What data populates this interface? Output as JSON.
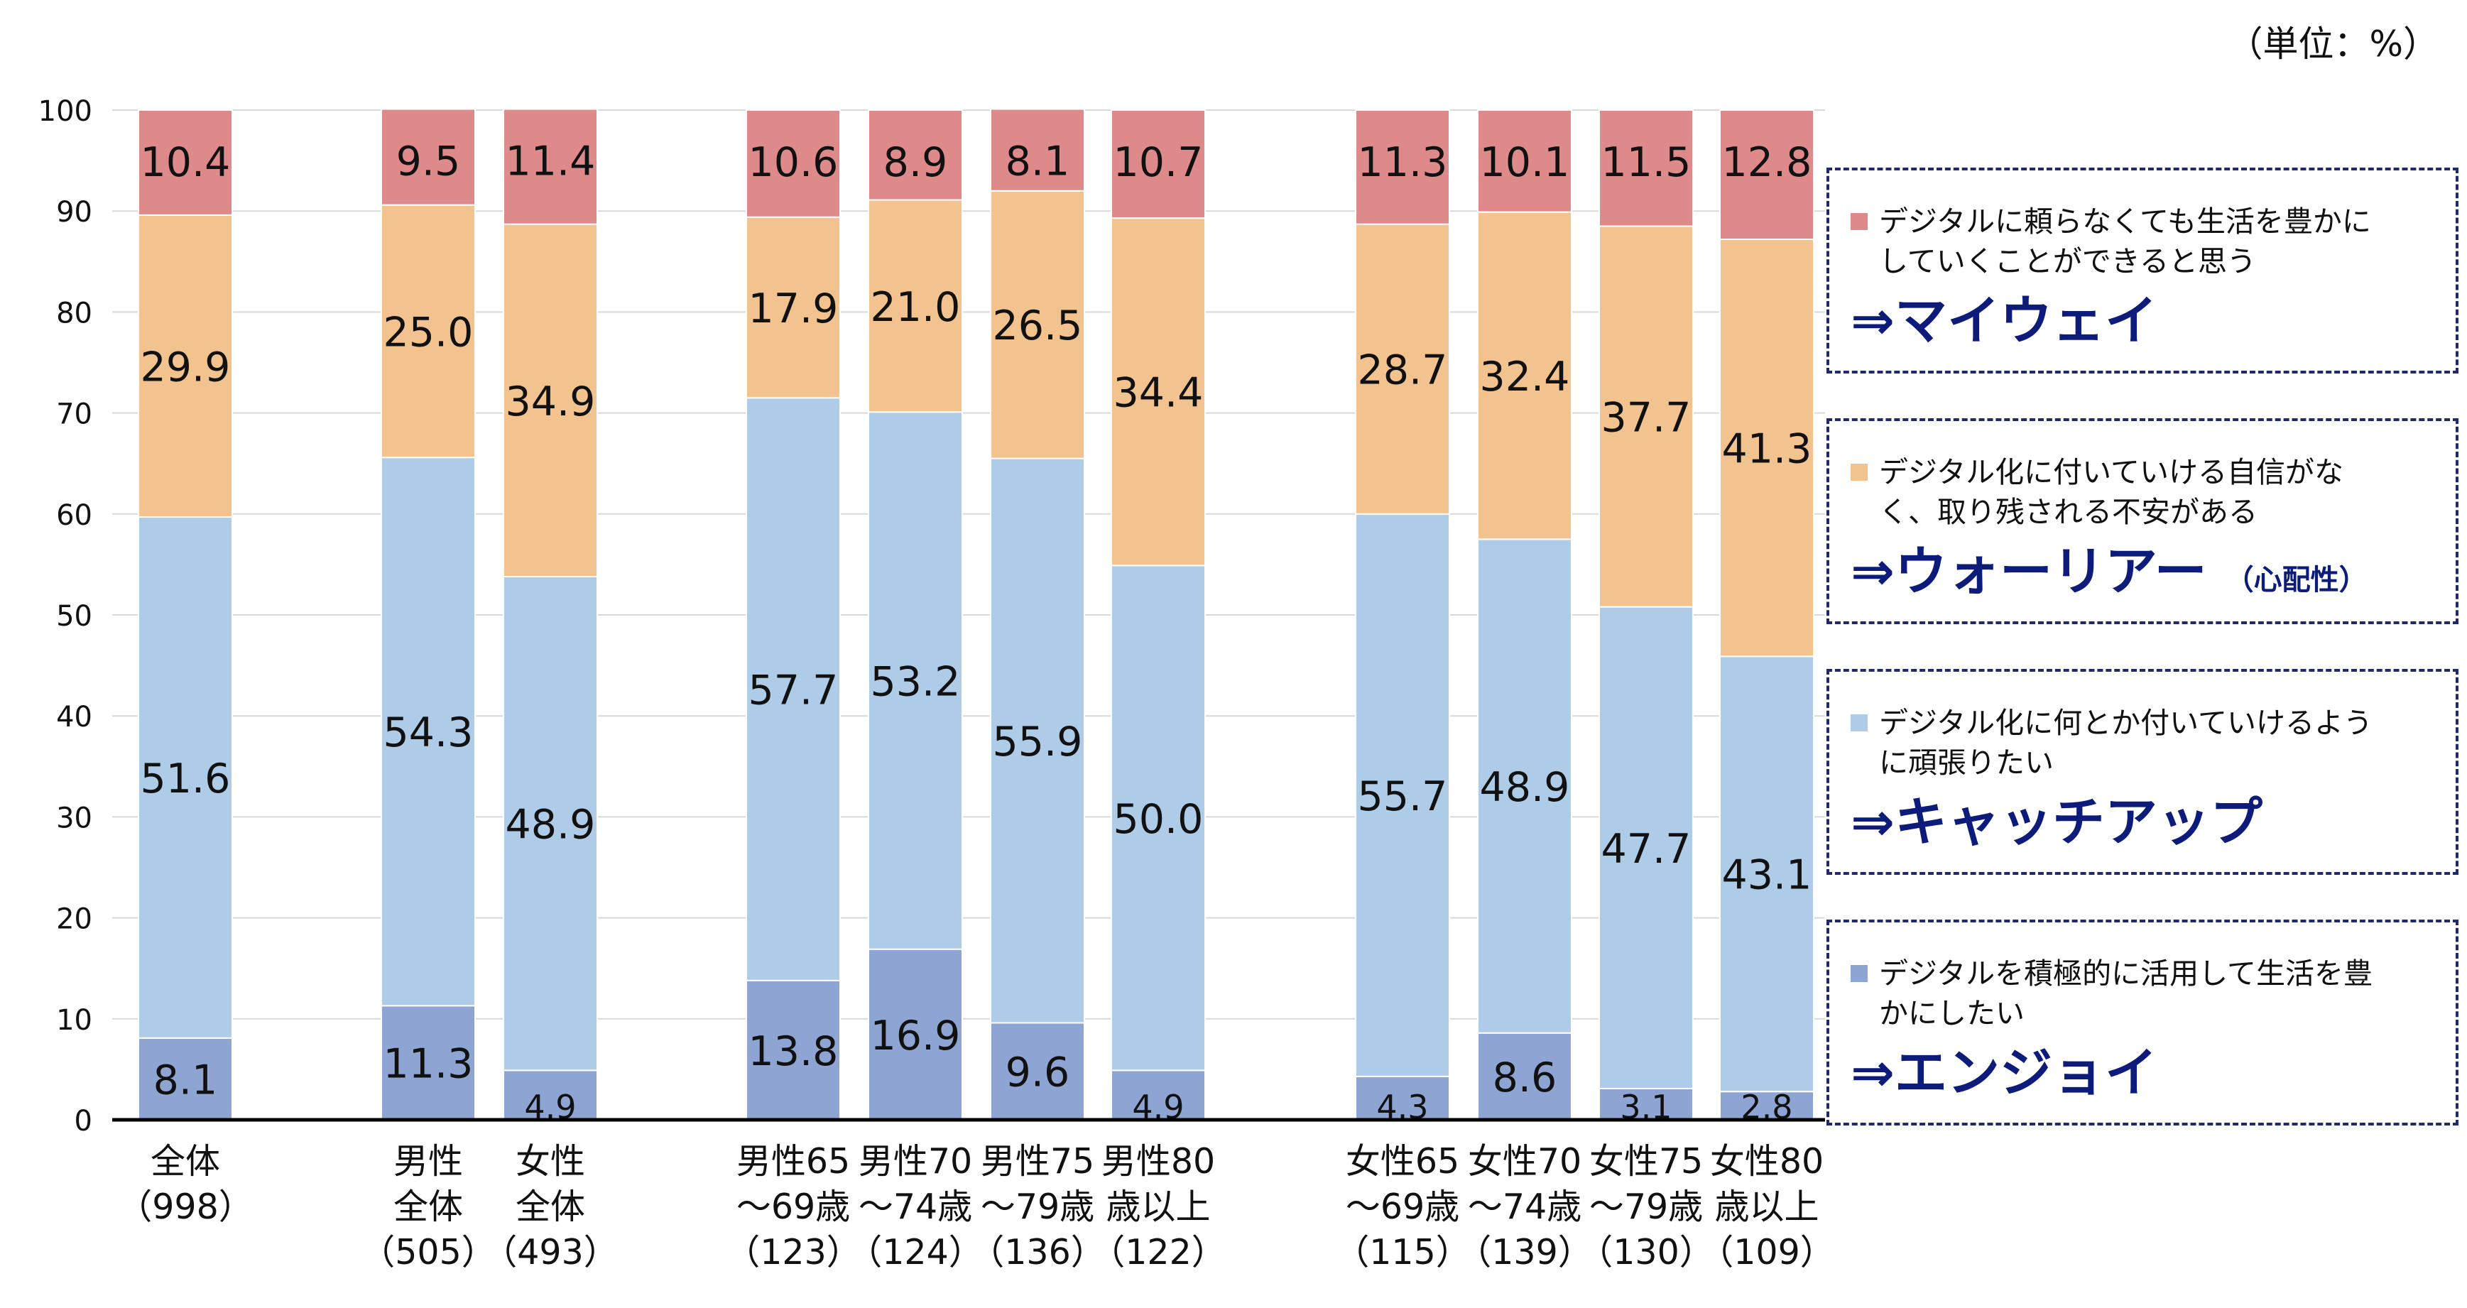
{
  "unit_note": "（単位：%）",
  "chart_data": {
    "type": "bar",
    "stacked": true,
    "ylim": [
      0,
      100
    ],
    "yticks": [
      "0",
      "10",
      "20",
      "30",
      "40",
      "50",
      "60",
      "70",
      "80",
      "90",
      "100"
    ],
    "grid": true,
    "categories": [
      {
        "lines": [
          "全体",
          "（998）"
        ]
      },
      {
        "lines": [
          "男性",
          "全体",
          "（505）"
        ]
      },
      {
        "lines": [
          "女性",
          "全体",
          "（493）"
        ]
      },
      {
        "lines": [
          "男性65",
          "～69歳",
          "（123）"
        ]
      },
      {
        "lines": [
          "男性70",
          "～74歳",
          "（124）"
        ]
      },
      {
        "lines": [
          "男性75",
          "～79歳",
          "（136）"
        ]
      },
      {
        "lines": [
          "男性80",
          "歳以上",
          "（122）"
        ]
      },
      {
        "lines": [
          "女性65",
          "～69歳",
          "（115）"
        ]
      },
      {
        "lines": [
          "女性70",
          "～74歳",
          "（139）"
        ]
      },
      {
        "lines": [
          "女性75",
          "～79歳",
          "（130）"
        ]
      },
      {
        "lines": [
          "女性80",
          "歳以上",
          "（109）"
        ]
      }
    ],
    "series": [
      {
        "key": "enjoy",
        "color": "#8ea4d2",
        "values": [
          8.1,
          11.3,
          4.9,
          13.8,
          16.9,
          9.6,
          4.9,
          4.3,
          8.6,
          3.1,
          2.8
        ],
        "labels": [
          "8.1",
          "11.3",
          "4.9",
          "13.8",
          "16.9",
          "9.6",
          "4.9",
          "4.3",
          "8.6",
          "3.1",
          "2.8"
        ]
      },
      {
        "key": "catchup",
        "color": "#aecbe8",
        "values": [
          51.6,
          54.3,
          48.9,
          57.7,
          53.2,
          55.9,
          50.0,
          55.7,
          48.9,
          47.7,
          43.1
        ],
        "labels": [
          "51.6",
          "54.3",
          "48.9",
          "57.7",
          "53.2",
          "55.9",
          "50.0",
          "55.7",
          "48.9",
          "47.7",
          "43.1"
        ]
      },
      {
        "key": "worrier",
        "color": "#f2c28f",
        "values": [
          29.9,
          25.0,
          34.9,
          17.9,
          21.0,
          26.5,
          34.4,
          28.7,
          32.4,
          37.7,
          41.3
        ],
        "labels": [
          "29.9",
          "25.0",
          "34.9",
          "17.9",
          "21.0",
          "26.5",
          "34.4",
          "28.7",
          "32.4",
          "37.7",
          "41.3"
        ]
      },
      {
        "key": "myway",
        "color": "#de8a8a",
        "values": [
          10.4,
          9.5,
          11.4,
          10.6,
          8.9,
          8.1,
          10.7,
          11.3,
          10.1,
          11.5,
          12.8
        ],
        "labels": [
          "10.4",
          "9.5",
          "11.4",
          "10.6",
          "8.9",
          "8.1",
          "10.7",
          "11.3",
          "10.1",
          "11.5",
          "12.8"
        ]
      }
    ]
  },
  "legend": [
    {
      "key": "myway",
      "color": "#de8a8a",
      "desc_lines": [
        "デジタルに頼らなくても生活を豊かに",
        "していくことができると思う"
      ],
      "name": "⇒マイウェイ",
      "sub": ""
    },
    {
      "key": "worrier",
      "color": "#f2c28f",
      "desc_lines": [
        "デジタル化に付いていける自信がな",
        "く、取り残される不安がある"
      ],
      "name": "⇒ウォーリアー",
      "sub": "（心配性）"
    },
    {
      "key": "catchup",
      "color": "#aecbe8",
      "desc_lines": [
        "デジタル化に何とか付いていけるよう",
        "に頑張りたい"
      ],
      "name": "⇒キャッチアップ",
      "sub": ""
    },
    {
      "key": "enjoy",
      "color": "#8ea4d2",
      "desc_lines": [
        "デジタルを積極的に活用して生活を豊",
        "かにしたい"
      ],
      "name": "⇒エンジョイ",
      "sub": ""
    }
  ]
}
